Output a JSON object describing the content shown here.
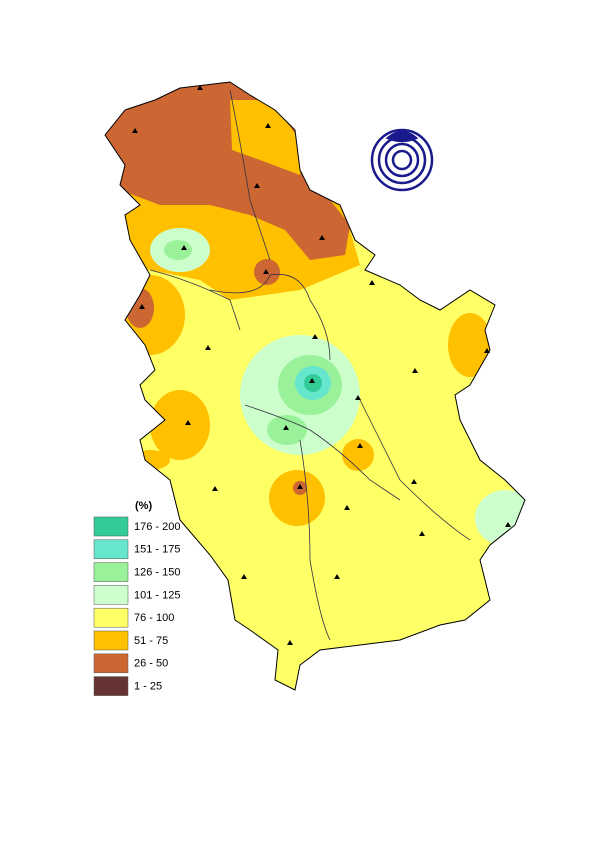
{
  "legend": {
    "title": "(%)",
    "items": [
      {
        "label": "176 - 200",
        "color": "#33cc99"
      },
      {
        "label": "151 - 175",
        "color": "#66e6cc"
      },
      {
        "label": "126 - 150",
        "color": "#99f299"
      },
      {
        "label": "101 - 125",
        "color": "#ccffcc"
      },
      {
        "label": "76 - 100",
        "color": "#ffff66"
      },
      {
        "label": "51 - 75",
        "color": "#ffc000"
      },
      {
        "label": "26 - 50",
        "color": "#cc6633"
      },
      {
        "label": "1 - 25",
        "color": "#663333"
      }
    ]
  }
}
